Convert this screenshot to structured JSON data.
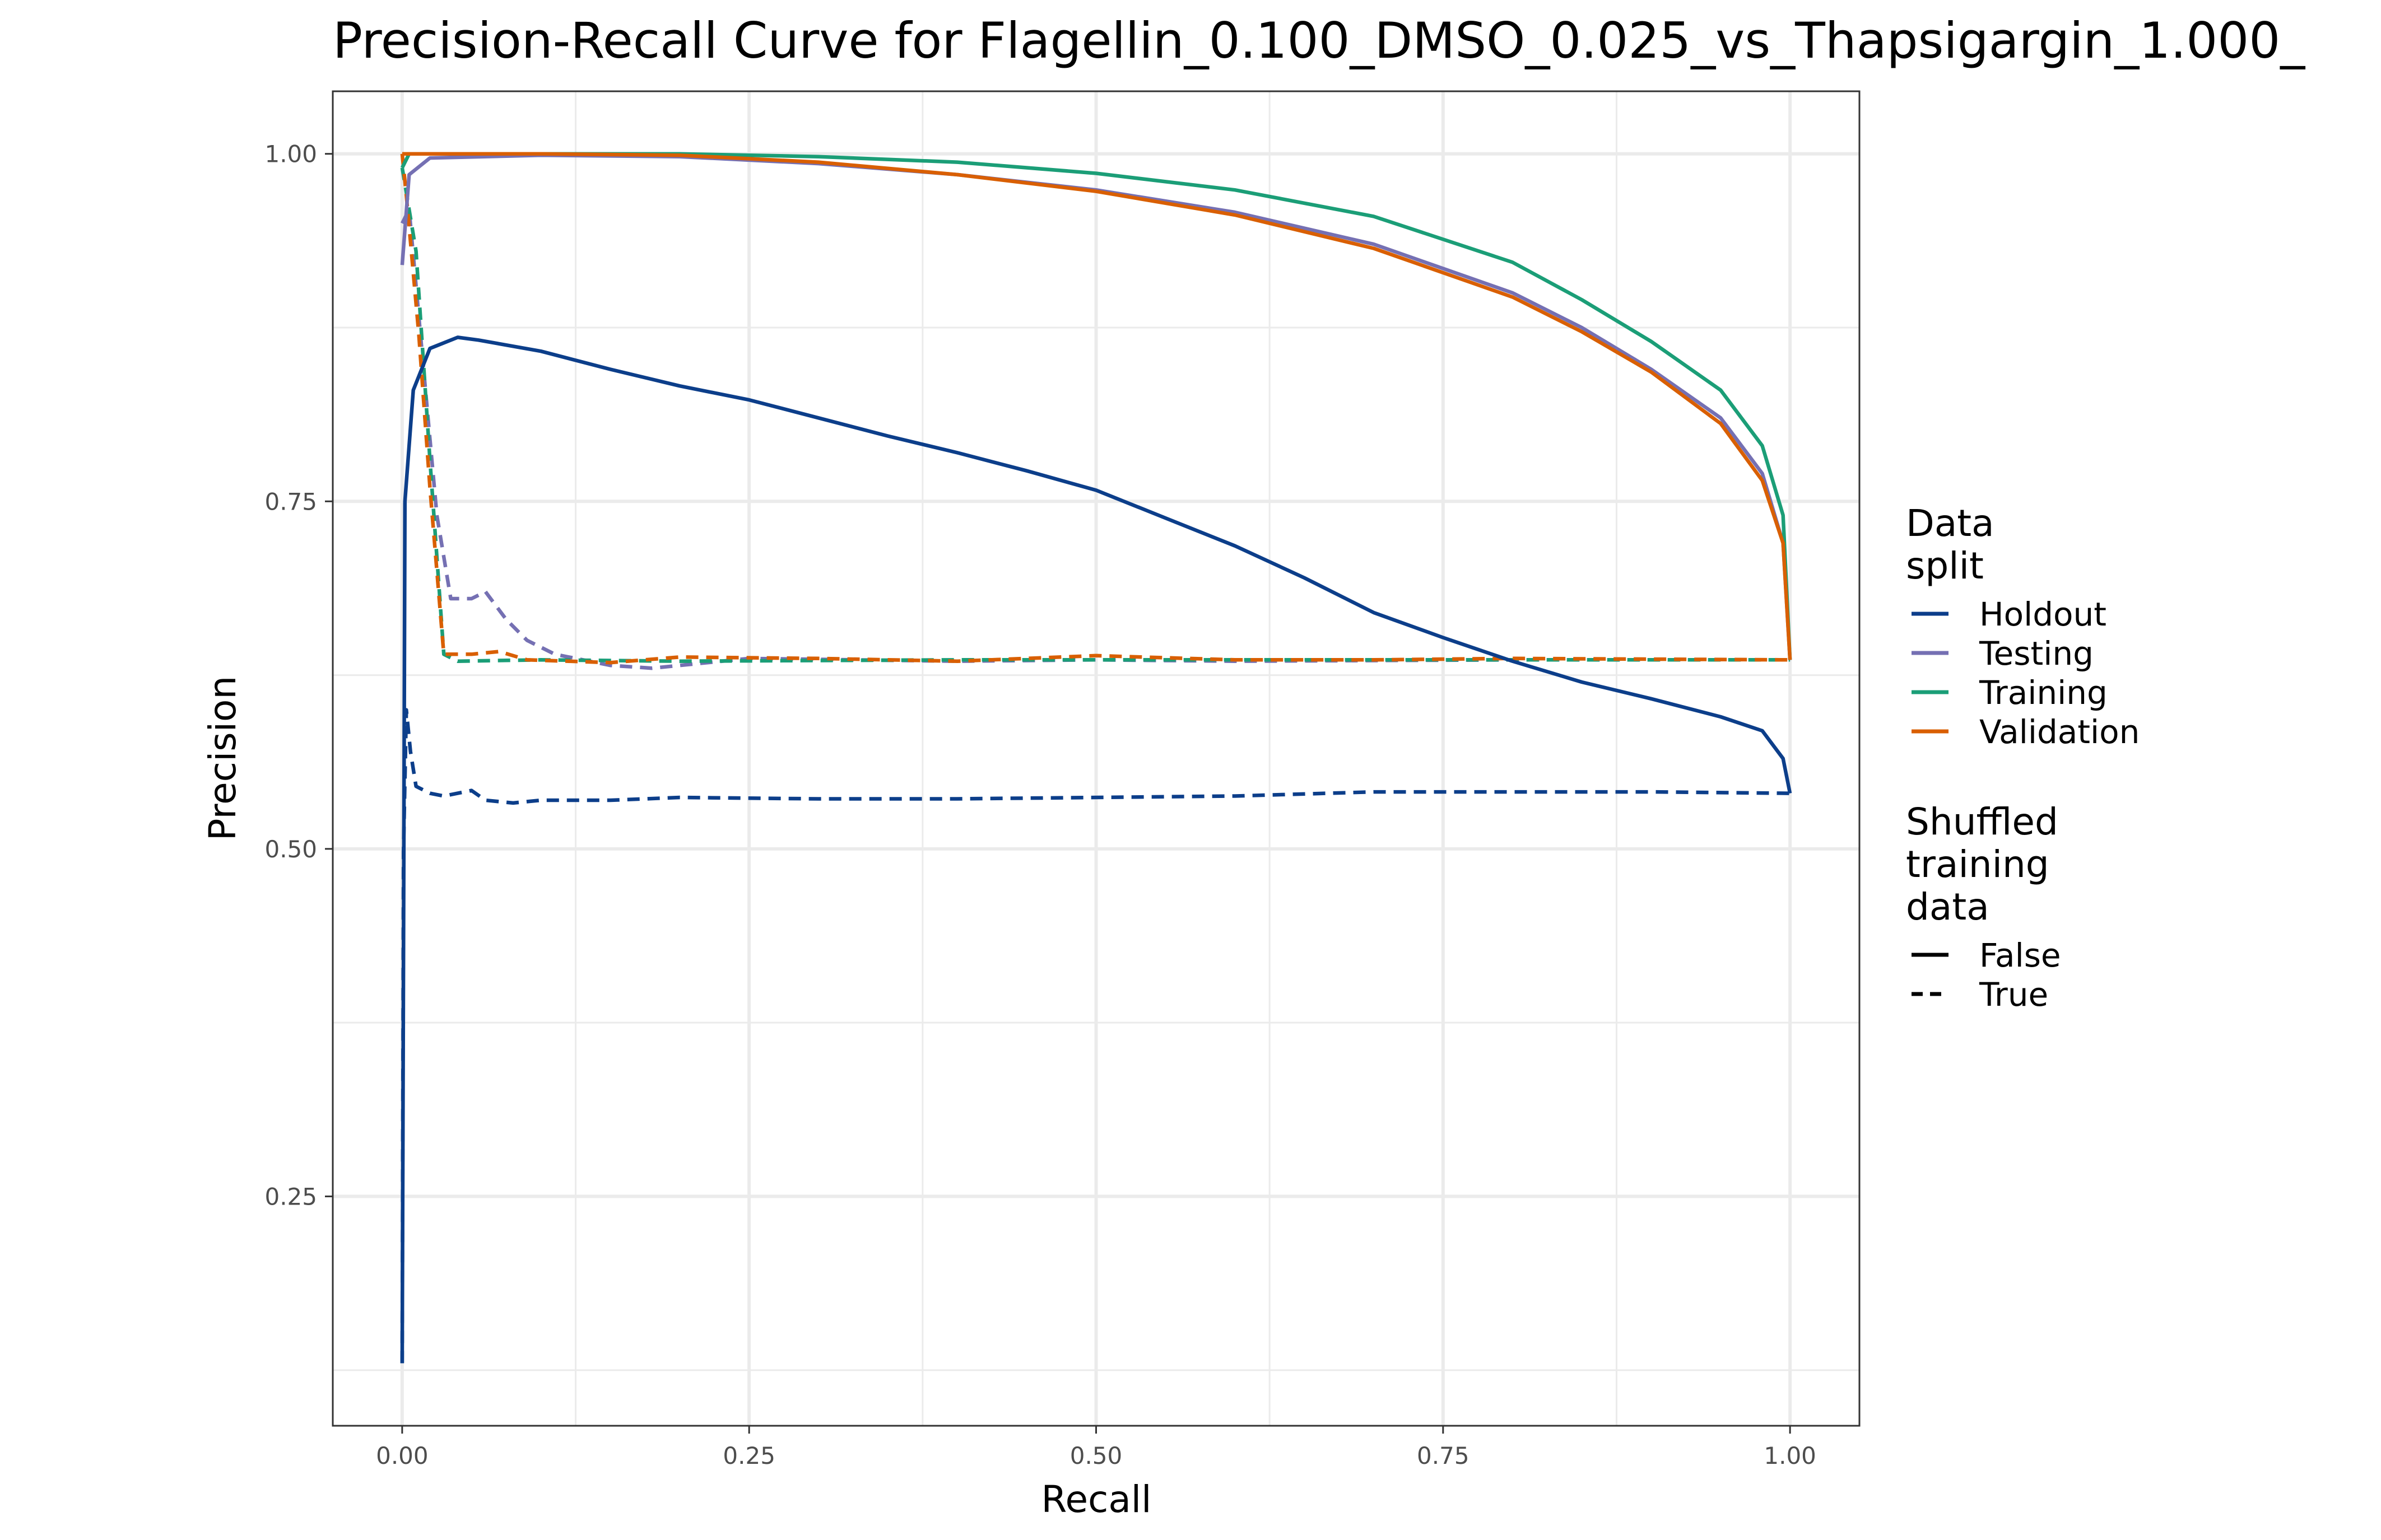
{
  "chart_data": {
    "type": "line",
    "title": "Precision-Recall Curve for Flagellin_0.100_DMSO_0.025_vs_Thapsigargin_1.000_",
    "xlabel": "Recall",
    "ylabel": "Precision",
    "xlim": [
      -0.05,
      1.05
    ],
    "ylim": [
      0.085,
      1.045
    ],
    "x_ticks": [
      0.0,
      0.25,
      0.5,
      0.75,
      1.0
    ],
    "x_tick_labels": [
      "0.00",
      "0.25",
      "0.50",
      "0.75",
      "1.00"
    ],
    "y_ticks": [
      0.25,
      0.5,
      0.75,
      1.0
    ],
    "y_tick_labels": [
      "0.25",
      "0.50",
      "0.75",
      "1.00"
    ],
    "grid": true,
    "legend_position": "right",
    "legend": {
      "color_title": "Data\nsplit",
      "color_entries": [
        {
          "label": "Holdout",
          "color": "#0c3e8a"
        },
        {
          "label": "Testing",
          "color": "#7570b3"
        },
        {
          "label": "Training",
          "color": "#1b9e77"
        },
        {
          "label": "Validation",
          "color": "#d95f02"
        }
      ],
      "linetype_title": "Shuffled\ntraining\ndata",
      "linetype_entries": [
        {
          "label": "False",
          "dash": "solid"
        },
        {
          "label": "True",
          "dash": "dashed"
        }
      ]
    },
    "series": [
      {
        "split": "Holdout",
        "shuffled": "True",
        "color": "#0c3e8a",
        "dash": "dashed",
        "points": [
          [
            0.0,
            0.13
          ],
          [
            0.001,
            0.5
          ],
          [
            0.003,
            0.6
          ],
          [
            0.006,
            0.57
          ],
          [
            0.01,
            0.545
          ],
          [
            0.02,
            0.54
          ],
          [
            0.03,
            0.538
          ],
          [
            0.05,
            0.542
          ],
          [
            0.06,
            0.535
          ],
          [
            0.08,
            0.533
          ],
          [
            0.1,
            0.535
          ],
          [
            0.15,
            0.535
          ],
          [
            0.2,
            0.537
          ],
          [
            0.3,
            0.536
          ],
          [
            0.4,
            0.536
          ],
          [
            0.5,
            0.537
          ],
          [
            0.6,
            0.538
          ],
          [
            0.7,
            0.541
          ],
          [
            0.8,
            0.541
          ],
          [
            0.9,
            0.541
          ],
          [
            1.0,
            0.54
          ]
        ]
      },
      {
        "split": "Testing",
        "shuffled": "True",
        "color": "#7570b3",
        "dash": "dashed",
        "points": [
          [
            0.0,
            0.95
          ],
          [
            0.005,
            0.96
          ],
          [
            0.015,
            0.85
          ],
          [
            0.025,
            0.74
          ],
          [
            0.035,
            0.68
          ],
          [
            0.05,
            0.68
          ],
          [
            0.06,
            0.685
          ],
          [
            0.075,
            0.665
          ],
          [
            0.09,
            0.65
          ],
          [
            0.11,
            0.64
          ],
          [
            0.15,
            0.632
          ],
          [
            0.18,
            0.63
          ],
          [
            0.25,
            0.637
          ],
          [
            0.4,
            0.635
          ],
          [
            0.5,
            0.636
          ],
          [
            0.6,
            0.635
          ],
          [
            0.8,
            0.636
          ],
          [
            1.0,
            0.636
          ]
        ]
      },
      {
        "split": "Training",
        "shuffled": "True",
        "color": "#1b9e77",
        "dash": "dashed",
        "points": [
          [
            0.0,
            0.99
          ],
          [
            0.01,
            0.93
          ],
          [
            0.02,
            0.78
          ],
          [
            0.03,
            0.64
          ],
          [
            0.04,
            0.635
          ],
          [
            0.1,
            0.636
          ],
          [
            0.2,
            0.635
          ],
          [
            0.4,
            0.636
          ],
          [
            0.6,
            0.636
          ],
          [
            0.8,
            0.636
          ],
          [
            1.0,
            0.636
          ]
        ]
      },
      {
        "split": "Validation",
        "shuffled": "True",
        "color": "#d95f02",
        "dash": "dashed",
        "points": [
          [
            0.0,
            1.0
          ],
          [
            0.003,
            0.97
          ],
          [
            0.012,
            0.87
          ],
          [
            0.02,
            0.76
          ],
          [
            0.03,
            0.64
          ],
          [
            0.05,
            0.64
          ],
          [
            0.07,
            0.642
          ],
          [
            0.09,
            0.636
          ],
          [
            0.15,
            0.634
          ],
          [
            0.2,
            0.638
          ],
          [
            0.3,
            0.637
          ],
          [
            0.4,
            0.635
          ],
          [
            0.5,
            0.639
          ],
          [
            0.6,
            0.636
          ],
          [
            0.7,
            0.636
          ],
          [
            0.8,
            0.637
          ],
          [
            1.0,
            0.636
          ]
        ]
      },
      {
        "split": "Holdout",
        "shuffled": "False",
        "color": "#0c3e8a",
        "dash": "solid",
        "points": [
          [
            0.0,
            0.13
          ],
          [
            0.002,
            0.75
          ],
          [
            0.008,
            0.83
          ],
          [
            0.02,
            0.86
          ],
          [
            0.04,
            0.868
          ],
          [
            0.055,
            0.866
          ],
          [
            0.1,
            0.858
          ],
          [
            0.15,
            0.845
          ],
          [
            0.2,
            0.833
          ],
          [
            0.25,
            0.823
          ],
          [
            0.3,
            0.81
          ],
          [
            0.35,
            0.797
          ],
          [
            0.4,
            0.785
          ],
          [
            0.45,
            0.772
          ],
          [
            0.5,
            0.758
          ],
          [
            0.55,
            0.738
          ],
          [
            0.6,
            0.718
          ],
          [
            0.65,
            0.695
          ],
          [
            0.7,
            0.67
          ],
          [
            0.75,
            0.652
          ],
          [
            0.8,
            0.635
          ],
          [
            0.85,
            0.62
          ],
          [
            0.9,
            0.608
          ],
          [
            0.95,
            0.595
          ],
          [
            0.98,
            0.585
          ],
          [
            0.995,
            0.565
          ],
          [
            1.0,
            0.54
          ]
        ]
      },
      {
        "split": "Testing",
        "shuffled": "False",
        "color": "#7570b3",
        "dash": "solid",
        "points": [
          [
            0.0,
            0.92
          ],
          [
            0.005,
            0.985
          ],
          [
            0.02,
            0.997
          ],
          [
            0.1,
            0.999
          ],
          [
            0.2,
            0.998
          ],
          [
            0.3,
            0.993
          ],
          [
            0.4,
            0.985
          ],
          [
            0.5,
            0.974
          ],
          [
            0.6,
            0.958
          ],
          [
            0.7,
            0.935
          ],
          [
            0.8,
            0.9
          ],
          [
            0.85,
            0.875
          ],
          [
            0.9,
            0.845
          ],
          [
            0.95,
            0.81
          ],
          [
            0.98,
            0.77
          ],
          [
            0.995,
            0.72
          ],
          [
            1.0,
            0.636
          ]
        ]
      },
      {
        "split": "Training",
        "shuffled": "False",
        "color": "#1b9e77",
        "dash": "solid",
        "points": [
          [
            0.0,
            0.99
          ],
          [
            0.005,
            1.0
          ],
          [
            0.1,
            1.0
          ],
          [
            0.2,
            1.0
          ],
          [
            0.3,
            0.998
          ],
          [
            0.4,
            0.994
          ],
          [
            0.5,
            0.986
          ],
          [
            0.6,
            0.974
          ],
          [
            0.7,
            0.955
          ],
          [
            0.8,
            0.922
          ],
          [
            0.85,
            0.895
          ],
          [
            0.9,
            0.865
          ],
          [
            0.95,
            0.83
          ],
          [
            0.98,
            0.79
          ],
          [
            0.995,
            0.74
          ],
          [
            1.0,
            0.636
          ]
        ]
      },
      {
        "split": "Validation",
        "shuffled": "False",
        "color": "#d95f02",
        "dash": "solid",
        "points": [
          [
            0.0,
            1.0
          ],
          [
            0.1,
            1.0
          ],
          [
            0.2,
            0.999
          ],
          [
            0.3,
            0.994
          ],
          [
            0.4,
            0.985
          ],
          [
            0.5,
            0.973
          ],
          [
            0.6,
            0.956
          ],
          [
            0.7,
            0.932
          ],
          [
            0.8,
            0.897
          ],
          [
            0.85,
            0.872
          ],
          [
            0.9,
            0.843
          ],
          [
            0.95,
            0.806
          ],
          [
            0.98,
            0.765
          ],
          [
            0.995,
            0.72
          ],
          [
            1.0,
            0.636
          ]
        ]
      }
    ]
  }
}
